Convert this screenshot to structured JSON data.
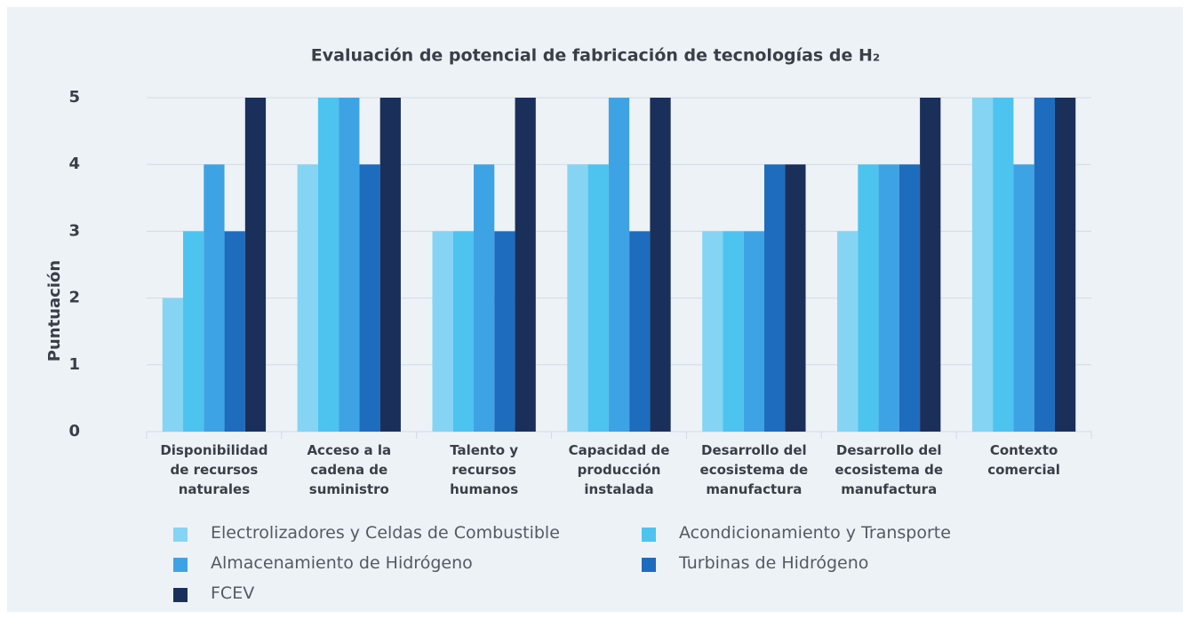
{
  "chart_data": {
    "type": "bar",
    "title": "Evaluación de potencial de fabricación de tecnologías de H₂",
    "y_label": "Puntuación",
    "categories": [
      "Disponibilidad de recursos naturales",
      "Acceso a la cadena de suministro",
      "Talento y recursos humanos",
      "Capacidad de producción instalada",
      "Desarrollo del ecosistema de manufactura",
      "Desarrollo del ecosistema de manufactura",
      "Contexto comercial"
    ],
    "series": [
      {
        "name": "Electrolizadores  y Celdas de Combustible",
        "color": "#86d4f3",
        "values": [
          2,
          4,
          3,
          4,
          3,
          3,
          5
        ]
      },
      {
        "name": "Acondicionamiento y Transporte",
        "color": "#4dc3f0",
        "values": [
          3,
          5,
          3,
          4,
          3,
          4,
          5
        ]
      },
      {
        "name": "Almacenamiento de Hidrógeno",
        "color": "#3ea3e4",
        "values": [
          4,
          5,
          4,
          5,
          3,
          4,
          4
        ]
      },
      {
        "name": "Turbinas de Hidrógeno",
        "color": "#1e6cbd",
        "values": [
          3,
          4,
          3,
          3,
          4,
          4,
          5
        ]
      },
      {
        "name": "FCEV",
        "color": "#1b2f5b",
        "values": [
          5,
          5,
          5,
          5,
          4,
          5,
          5
        ]
      }
    ],
    "ylim": [
      0,
      5
    ],
    "yticks": [
      0,
      1,
      2,
      3,
      4,
      5
    ],
    "grid": true
  }
}
